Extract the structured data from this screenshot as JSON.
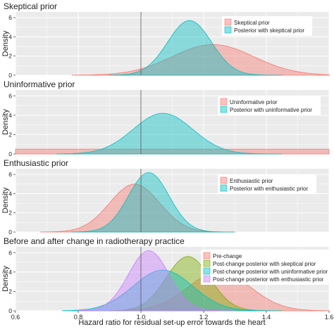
{
  "xlabel": "Hazard ratio for residual set-up error towards the heart",
  "ylabel": "Density",
  "x_ticks": [
    "0.6",
    "0.8",
    "1.0",
    "1.2",
    "1.4",
    "1.6"
  ],
  "x_tick_values": [
    0.6,
    0.8,
    1.0,
    1.2,
    1.4,
    1.6
  ],
  "x_range": [
    0.6,
    1.6
  ],
  "y_ticks": [
    "0",
    "2",
    "4",
    "6"
  ],
  "y_tick_values": [
    0,
    2,
    4,
    6
  ],
  "y_range": [
    0,
    6.6
  ],
  "reference_line_x": 1.0,
  "colors": {
    "salmon": "#f8766d",
    "green": "#7cae00",
    "cyan": "#00bfc4",
    "purple": "#c77cff",
    "panel_bg": "#ebebeb",
    "grid": "#ffffff"
  },
  "chart_data": [
    {
      "type": "area",
      "title": "Skeptical prior",
      "legend_position": "top-right",
      "grid": true,
      "xlim": [
        0.6,
        1.6
      ],
      "ylim": [
        0,
        6.6
      ],
      "series": [
        {
          "name": "Skeptical prior",
          "color": "#f8766d",
          "mean": 1.23,
          "sd": 0.13,
          "x_range": [
            0.78,
            1.6
          ],
          "peak": 3.2
        },
        {
          "name": "Posterior with skeptical prior",
          "color": "#00bfc4",
          "mean": 1.155,
          "sd": 0.07,
          "x_range": [
            0.9,
            1.45
          ],
          "peak": 5.7
        }
      ]
    },
    {
      "type": "area",
      "title": "Uninformative prior",
      "legend_position": "top-right",
      "grid": true,
      "xlim": [
        0.6,
        1.6
      ],
      "ylim": [
        0,
        6.6
      ],
      "series": [
        {
          "name": "Uninformative prior",
          "color": "#f8766d",
          "flat": true,
          "level": 0.5,
          "x_range": [
            0.6,
            1.6
          ]
        },
        {
          "name": "Posterior with uninformative prior",
          "color": "#00bfc4",
          "mean": 1.07,
          "sd": 0.095,
          "x_range": [
            0.73,
            1.45
          ],
          "peak": 4.2
        }
      ]
    },
    {
      "type": "area",
      "title": "Enthusiastic prior",
      "legend_position": "top-right",
      "grid": true,
      "xlim": [
        0.6,
        1.6
      ],
      "ylim": [
        0,
        6.6
      ],
      "series": [
        {
          "name": "Enthusiastic prior",
          "color": "#f8766d",
          "mean": 0.98,
          "sd": 0.08,
          "x_range": [
            0.68,
            1.3
          ],
          "peak": 5.0
        },
        {
          "name": "Posterior with enthusiastic prior",
          "color": "#00bfc4",
          "mean": 1.025,
          "sd": 0.065,
          "x_range": [
            0.78,
            1.3
          ],
          "peak": 6.2
        }
      ]
    },
    {
      "type": "area",
      "title": "Before and after change in radiotherapy practice",
      "legend_position": "top-right",
      "grid": true,
      "xlim": [
        0.6,
        1.6
      ],
      "ylim": [
        0,
        6.6
      ],
      "series": [
        {
          "name": "Pre-change",
          "color": "#f8766d",
          "mean": 1.25,
          "sd": 0.1,
          "x_range": [
            0.93,
            1.6
          ],
          "peak": 4.0
        },
        {
          "name": "Post-change posterior with skeptical prior",
          "color": "#7cae00",
          "mean": 1.15,
          "sd": 0.07,
          "x_range": [
            0.9,
            1.45
          ],
          "peak": 5.6
        },
        {
          "name": "Post-change posterior with uninformative prior",
          "color": "#00bfc4",
          "mean": 1.07,
          "sd": 0.095,
          "x_range": [
            0.75,
            1.45
          ],
          "peak": 4.2
        },
        {
          "name": "Post-change posterior with enthusiastic prior",
          "color": "#c77cff",
          "mean": 1.025,
          "sd": 0.065,
          "x_range": [
            0.8,
            1.3
          ],
          "peak": 6.2
        }
      ]
    }
  ]
}
